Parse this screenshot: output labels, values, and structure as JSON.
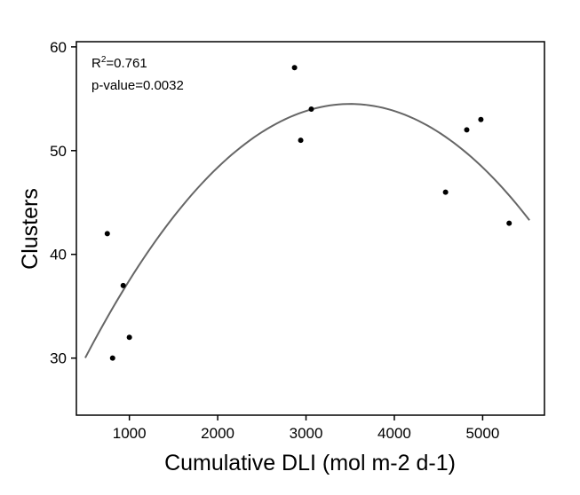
{
  "chart_data": {
    "type": "scatter",
    "xlabel": "Cumulative DLI (mol m-2 d-1)",
    "ylabel": "Clusters",
    "xlim": [
      400,
      5700
    ],
    "ylim": [
      24.5,
      60.5
    ],
    "xticks": [
      1000,
      2000,
      3000,
      4000,
      5000
    ],
    "yticks": [
      30,
      40,
      50,
      60
    ],
    "grid": false,
    "legend": "none",
    "annotation": {
      "r2_label": "R",
      "r2_sup": "2",
      "r2_value": "=0.761",
      "p_value": "p-value=0.0032"
    },
    "points": [
      {
        "x": 750,
        "y": 42
      },
      {
        "x": 810,
        "y": 30
      },
      {
        "x": 930,
        "y": 37
      },
      {
        "x": 1000,
        "y": 32
      },
      {
        "x": 2870,
        "y": 58
      },
      {
        "x": 2940,
        "y": 51
      },
      {
        "x": 3060,
        "y": 54
      },
      {
        "x": 4580,
        "y": 46
      },
      {
        "x": 4820,
        "y": 52
      },
      {
        "x": 4980,
        "y": 53
      },
      {
        "x": 5300,
        "y": 43
      }
    ],
    "fit": {
      "type": "quadratic",
      "x_range": [
        500,
        5530
      ],
      "coefficients": {
        "vertex_x": 3500,
        "vertex_y": 54.5,
        "a": -2.72e-06
      }
    },
    "colors": {
      "points": "#000000",
      "fit_line": "#666666",
      "axis": "#000000"
    }
  }
}
